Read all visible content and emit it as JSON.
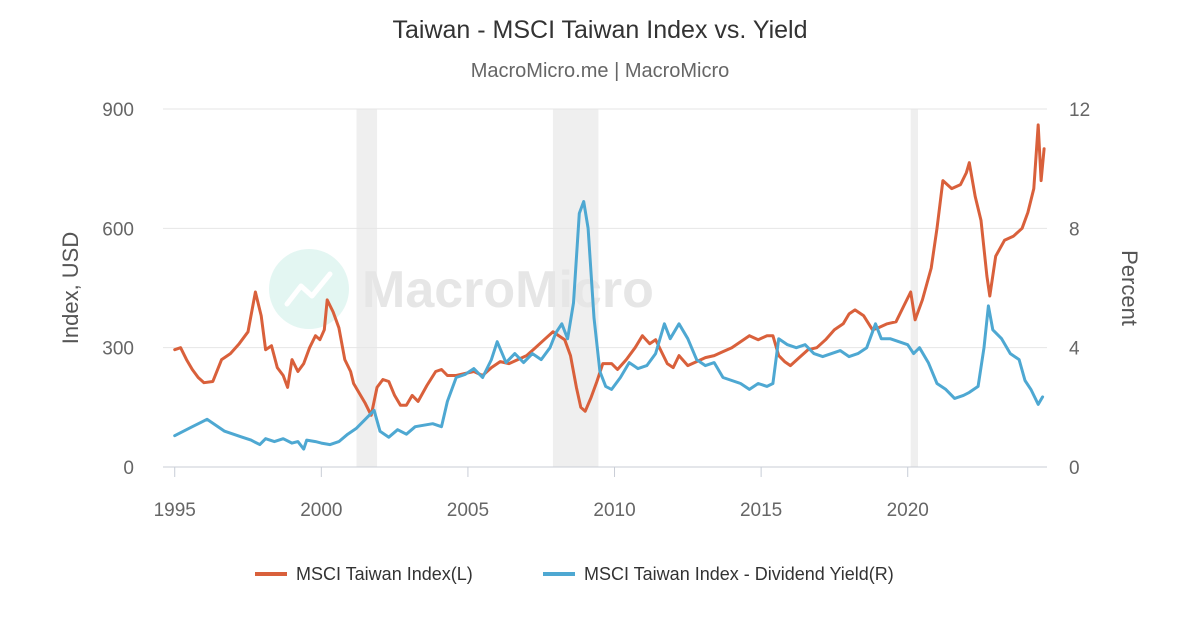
{
  "chart_data": {
    "type": "line",
    "title": "Taiwan - MSCI Taiwan Index vs. Yield",
    "subtitle": "MacroMicro.me | MacroMicro",
    "watermark": "MacroMicro",
    "ylabel_left": "Index, USD",
    "ylabel_right": "Percent",
    "ylim_left": [
      0,
      900
    ],
    "ylim_right": [
      0,
      12
    ],
    "xlim": [
      1994.6,
      2024.75
    ],
    "yticks_left": [
      0,
      300,
      600,
      900
    ],
    "yticks_right": [
      0,
      4,
      8,
      12
    ],
    "xticks": [
      1995,
      2000,
      2005,
      2010,
      2015,
      2020
    ],
    "grid": true,
    "legend_position": "bottom",
    "recession_bands": [
      [
        2001.2,
        2001.9
      ],
      [
        2007.9,
        2009.45
      ],
      [
        2020.1,
        2020.35
      ]
    ],
    "series": [
      {
        "name": "MSCI Taiwan Index(L)",
        "axis": "left",
        "color": "#d9603b",
        "points": [
          [
            1995.0,
            295
          ],
          [
            1995.2,
            300
          ],
          [
            1995.4,
            270
          ],
          [
            1995.6,
            245
          ],
          [
            1995.8,
            225
          ],
          [
            1996.0,
            212
          ],
          [
            1996.3,
            215
          ],
          [
            1996.6,
            270
          ],
          [
            1996.9,
            285
          ],
          [
            1997.2,
            310
          ],
          [
            1997.5,
            340
          ],
          [
            1997.75,
            440
          ],
          [
            1997.95,
            380
          ],
          [
            1998.1,
            295
          ],
          [
            1998.3,
            305
          ],
          [
            1998.5,
            250
          ],
          [
            1998.7,
            230
          ],
          [
            1998.85,
            200
          ],
          [
            1999.0,
            270
          ],
          [
            1999.2,
            240
          ],
          [
            1999.4,
            260
          ],
          [
            1999.6,
            300
          ],
          [
            1999.8,
            330
          ],
          [
            1999.95,
            320
          ],
          [
            2000.1,
            345
          ],
          [
            2000.2,
            420
          ],
          [
            2000.4,
            390
          ],
          [
            2000.6,
            350
          ],
          [
            2000.8,
            270
          ],
          [
            2001.0,
            240
          ],
          [
            2001.1,
            210
          ],
          [
            2001.3,
            185
          ],
          [
            2001.5,
            160
          ],
          [
            2001.7,
            130
          ],
          [
            2001.9,
            200
          ],
          [
            2002.1,
            220
          ],
          [
            2002.3,
            215
          ],
          [
            2002.5,
            180
          ],
          [
            2002.7,
            155
          ],
          [
            2002.9,
            155
          ],
          [
            2003.1,
            180
          ],
          [
            2003.3,
            165
          ],
          [
            2003.6,
            205
          ],
          [
            2003.9,
            240
          ],
          [
            2004.1,
            245
          ],
          [
            2004.3,
            230
          ],
          [
            2004.6,
            230
          ],
          [
            2004.9,
            235
          ],
          [
            2005.2,
            240
          ],
          [
            2005.5,
            230
          ],
          [
            2005.8,
            250
          ],
          [
            2006.1,
            265
          ],
          [
            2006.4,
            260
          ],
          [
            2006.7,
            270
          ],
          [
            2007.0,
            280
          ],
          [
            2007.3,
            300
          ],
          [
            2007.6,
            320
          ],
          [
            2007.9,
            340
          ],
          [
            2008.1,
            330
          ],
          [
            2008.3,
            320
          ],
          [
            2008.5,
            280
          ],
          [
            2008.7,
            200
          ],
          [
            2008.85,
            150
          ],
          [
            2009.0,
            140
          ],
          [
            2009.2,
            175
          ],
          [
            2009.4,
            215
          ],
          [
            2009.6,
            260
          ],
          [
            2009.9,
            260
          ],
          [
            2010.1,
            245
          ],
          [
            2010.4,
            270
          ],
          [
            2010.7,
            300
          ],
          [
            2010.95,
            330
          ],
          [
            2011.2,
            310
          ],
          [
            2011.4,
            320
          ],
          [
            2011.6,
            290
          ],
          [
            2011.8,
            260
          ],
          [
            2012.0,
            250
          ],
          [
            2012.2,
            280
          ],
          [
            2012.5,
            255
          ],
          [
            2012.8,
            265
          ],
          [
            2013.1,
            275
          ],
          [
            2013.4,
            280
          ],
          [
            2013.7,
            290
          ],
          [
            2014.0,
            300
          ],
          [
            2014.3,
            315
          ],
          [
            2014.6,
            330
          ],
          [
            2014.9,
            320
          ],
          [
            2015.2,
            330
          ],
          [
            2015.4,
            330
          ],
          [
            2015.6,
            280
          ],
          [
            2015.8,
            265
          ],
          [
            2016.0,
            255
          ],
          [
            2016.3,
            275
          ],
          [
            2016.6,
            295
          ],
          [
            2016.9,
            300
          ],
          [
            2017.2,
            320
          ],
          [
            2017.5,
            345
          ],
          [
            2017.8,
            360
          ],
          [
            2018.0,
            385
          ],
          [
            2018.2,
            395
          ],
          [
            2018.5,
            380
          ],
          [
            2018.8,
            345
          ],
          [
            2019.0,
            350
          ],
          [
            2019.3,
            360
          ],
          [
            2019.6,
            365
          ],
          [
            2019.9,
            410
          ],
          [
            2020.1,
            440
          ],
          [
            2020.25,
            370
          ],
          [
            2020.5,
            420
          ],
          [
            2020.8,
            500
          ],
          [
            2021.0,
            600
          ],
          [
            2021.2,
            720
          ],
          [
            2021.5,
            700
          ],
          [
            2021.8,
            710
          ],
          [
            2022.0,
            740
          ],
          [
            2022.1,
            765
          ],
          [
            2022.3,
            680
          ],
          [
            2022.5,
            620
          ],
          [
            2022.7,
            480
          ],
          [
            2022.8,
            430
          ],
          [
            2023.0,
            530
          ],
          [
            2023.3,
            570
          ],
          [
            2023.6,
            580
          ],
          [
            2023.9,
            600
          ],
          [
            2024.1,
            640
          ],
          [
            2024.3,
            700
          ],
          [
            2024.45,
            860
          ],
          [
            2024.55,
            720
          ],
          [
            2024.65,
            800
          ]
        ]
      },
      {
        "name": "MSCI Taiwan Index - Dividend Yield(R)",
        "axis": "right",
        "color": "#4ea8d2",
        "points": [
          [
            1995.0,
            1.05
          ],
          [
            1995.3,
            1.2
          ],
          [
            1995.6,
            1.35
          ],
          [
            1995.9,
            1.5
          ],
          [
            1996.1,
            1.6
          ],
          [
            1996.4,
            1.4
          ],
          [
            1996.7,
            1.2
          ],
          [
            1997.0,
            1.1
          ],
          [
            1997.3,
            1.0
          ],
          [
            1997.6,
            0.9
          ],
          [
            1997.9,
            0.75
          ],
          [
            1998.1,
            0.95
          ],
          [
            1998.4,
            0.85
          ],
          [
            1998.7,
            0.95
          ],
          [
            1999.0,
            0.8
          ],
          [
            1999.2,
            0.85
          ],
          [
            1999.4,
            0.6
          ],
          [
            1999.5,
            0.9
          ],
          [
            1999.8,
            0.85
          ],
          [
            2000.0,
            0.8
          ],
          [
            2000.3,
            0.75
          ],
          [
            2000.6,
            0.85
          ],
          [
            2000.9,
            1.1
          ],
          [
            2001.2,
            1.3
          ],
          [
            2001.5,
            1.6
          ],
          [
            2001.8,
            1.9
          ],
          [
            2002.0,
            1.2
          ],
          [
            2002.3,
            1.0
          ],
          [
            2002.6,
            1.25
          ],
          [
            2002.9,
            1.1
          ],
          [
            2003.2,
            1.35
          ],
          [
            2003.5,
            1.4
          ],
          [
            2003.8,
            1.45
          ],
          [
            2004.1,
            1.35
          ],
          [
            2004.3,
            2.2
          ],
          [
            2004.6,
            3.0
          ],
          [
            2004.9,
            3.1
          ],
          [
            2005.2,
            3.3
          ],
          [
            2005.5,
            3.0
          ],
          [
            2005.8,
            3.6
          ],
          [
            2006.0,
            4.2
          ],
          [
            2006.3,
            3.5
          ],
          [
            2006.6,
            3.8
          ],
          [
            2006.9,
            3.5
          ],
          [
            2007.2,
            3.8
          ],
          [
            2007.5,
            3.6
          ],
          [
            2007.8,
            4.0
          ],
          [
            2008.0,
            4.5
          ],
          [
            2008.2,
            4.8
          ],
          [
            2008.4,
            4.3
          ],
          [
            2008.6,
            5.5
          ],
          [
            2008.8,
            8.5
          ],
          [
            2008.95,
            8.9
          ],
          [
            2009.1,
            8.0
          ],
          [
            2009.3,
            5.0
          ],
          [
            2009.5,
            3.2
          ],
          [
            2009.7,
            2.7
          ],
          [
            2009.9,
            2.6
          ],
          [
            2010.2,
            3.0
          ],
          [
            2010.5,
            3.5
          ],
          [
            2010.8,
            3.3
          ],
          [
            2011.1,
            3.4
          ],
          [
            2011.4,
            3.8
          ],
          [
            2011.7,
            4.8
          ],
          [
            2011.9,
            4.3
          ],
          [
            2012.2,
            4.8
          ],
          [
            2012.5,
            4.3
          ],
          [
            2012.8,
            3.6
          ],
          [
            2013.1,
            3.4
          ],
          [
            2013.4,
            3.5
          ],
          [
            2013.7,
            3.0
          ],
          [
            2014.0,
            2.9
          ],
          [
            2014.3,
            2.8
          ],
          [
            2014.6,
            2.6
          ],
          [
            2014.9,
            2.8
          ],
          [
            2015.2,
            2.7
          ],
          [
            2015.4,
            2.8
          ],
          [
            2015.6,
            4.3
          ],
          [
            2015.9,
            4.1
          ],
          [
            2016.2,
            4.0
          ],
          [
            2016.5,
            4.1
          ],
          [
            2016.8,
            3.8
          ],
          [
            2017.1,
            3.7
          ],
          [
            2017.4,
            3.8
          ],
          [
            2017.7,
            3.9
          ],
          [
            2018.0,
            3.7
          ],
          [
            2018.3,
            3.8
          ],
          [
            2018.6,
            4.0
          ],
          [
            2018.9,
            4.8
          ],
          [
            2019.1,
            4.3
          ],
          [
            2019.4,
            4.3
          ],
          [
            2019.7,
            4.2
          ],
          [
            2020.0,
            4.1
          ],
          [
            2020.2,
            3.8
          ],
          [
            2020.4,
            4.0
          ],
          [
            2020.7,
            3.5
          ],
          [
            2021.0,
            2.8
          ],
          [
            2021.3,
            2.6
          ],
          [
            2021.6,
            2.3
          ],
          [
            2021.9,
            2.4
          ],
          [
            2022.1,
            2.5
          ],
          [
            2022.4,
            2.7
          ],
          [
            2022.6,
            4.0
          ],
          [
            2022.75,
            5.4
          ],
          [
            2022.9,
            4.6
          ],
          [
            2023.2,
            4.3
          ],
          [
            2023.5,
            3.8
          ],
          [
            2023.8,
            3.6
          ],
          [
            2024.0,
            2.9
          ],
          [
            2024.2,
            2.6
          ],
          [
            2024.35,
            2.3
          ],
          [
            2024.45,
            2.1
          ],
          [
            2024.6,
            2.35
          ]
        ]
      }
    ]
  }
}
